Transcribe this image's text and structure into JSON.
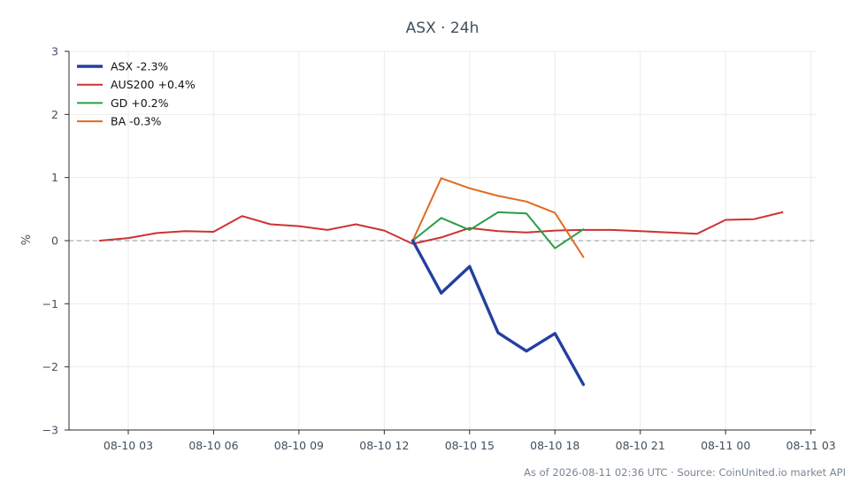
{
  "chart_data": {
    "type": "line",
    "title": "ASX · 24h",
    "xlabel": "",
    "ylabel": "%",
    "ylim": [
      -3,
      3
    ],
    "yticks": [
      -3,
      -2,
      -1,
      0,
      1,
      2,
      3
    ],
    "ytick_labels": [
      "−3",
      "−2",
      "−1",
      "0",
      "1",
      "2",
      "3"
    ],
    "xlim": [
      "2026-08-10 00:55",
      "2026-08-11 03:10"
    ],
    "xticks": [
      "2026-08-10 03:00",
      "2026-08-10 06:00",
      "2026-08-10 09:00",
      "2026-08-10 12:00",
      "2026-08-10 15:00",
      "2026-08-10 18:00",
      "2026-08-10 21:00",
      "2026-08-11 00:00",
      "2026-08-11 03:00"
    ],
    "xtick_labels": [
      "08-10 03",
      "08-10 06",
      "08-10 09",
      "08-10 12",
      "08-10 15",
      "08-10 18",
      "08-10 21",
      "08-11 00",
      "08-11 03"
    ],
    "grid": true,
    "zero_line": "dashed",
    "legend_position": "top-left",
    "series": [
      {
        "name": "ASX -2.3%",
        "color": "#2340a0",
        "emphasis": true,
        "x": [
          "2026-08-10 13:00",
          "2026-08-10 14:00",
          "2026-08-10 15:00",
          "2026-08-10 16:00",
          "2026-08-10 17:00",
          "2026-08-10 18:00",
          "2026-08-10 19:00"
        ],
        "y": [
          0.0,
          -0.83,
          -0.41,
          -1.46,
          -1.75,
          -1.47,
          -2.28
        ]
      },
      {
        "name": "AUS200 +0.4%",
        "color": "#cc3333",
        "emphasis": false,
        "x": [
          "2026-08-10 02:00",
          "2026-08-10 03:00",
          "2026-08-10 04:00",
          "2026-08-10 05:00",
          "2026-08-10 06:00",
          "2026-08-10 07:00",
          "2026-08-10 08:00",
          "2026-08-10 09:00",
          "2026-08-10 10:00",
          "2026-08-10 11:00",
          "2026-08-10 12:00",
          "2026-08-10 13:00",
          "2026-08-10 14:00",
          "2026-08-10 15:00",
          "2026-08-10 16:00",
          "2026-08-10 17:00",
          "2026-08-10 18:00",
          "2026-08-10 19:00",
          "2026-08-10 20:00",
          "2026-08-10 21:00",
          "2026-08-10 22:00",
          "2026-08-10 23:00",
          "2026-08-11 00:00",
          "2026-08-11 01:00",
          "2026-08-11 02:00"
        ],
        "y": [
          0.0,
          0.04,
          0.12,
          0.15,
          0.14,
          0.39,
          0.26,
          0.23,
          0.17,
          0.26,
          0.16,
          -0.05,
          0.05,
          0.2,
          0.15,
          0.13,
          0.16,
          0.17,
          0.17,
          0.15,
          0.13,
          0.11,
          0.33,
          0.34,
          0.45
        ]
      },
      {
        "name": "GD +0.2%",
        "color": "#2a9d4a",
        "emphasis": false,
        "x": [
          "2026-08-10 13:00",
          "2026-08-10 14:00",
          "2026-08-10 15:00",
          "2026-08-10 16:00",
          "2026-08-10 17:00",
          "2026-08-10 18:00",
          "2026-08-10 19:00"
        ],
        "y": [
          0.0,
          0.36,
          0.17,
          0.45,
          0.43,
          -0.12,
          0.18
        ]
      },
      {
        "name": "BA -0.3%",
        "color": "#e06a1f",
        "emphasis": false,
        "x": [
          "2026-08-10 13:00",
          "2026-08-10 14:00",
          "2026-08-10 15:00",
          "2026-08-10 16:00",
          "2026-08-10 17:00",
          "2026-08-10 18:00",
          "2026-08-10 19:00"
        ],
        "y": [
          0.0,
          0.99,
          0.83,
          0.71,
          0.62,
          0.44,
          -0.26
        ]
      }
    ]
  },
  "footer": "As of 2026-08-11 02:36 UTC · Source: CoinUnited.io market API"
}
